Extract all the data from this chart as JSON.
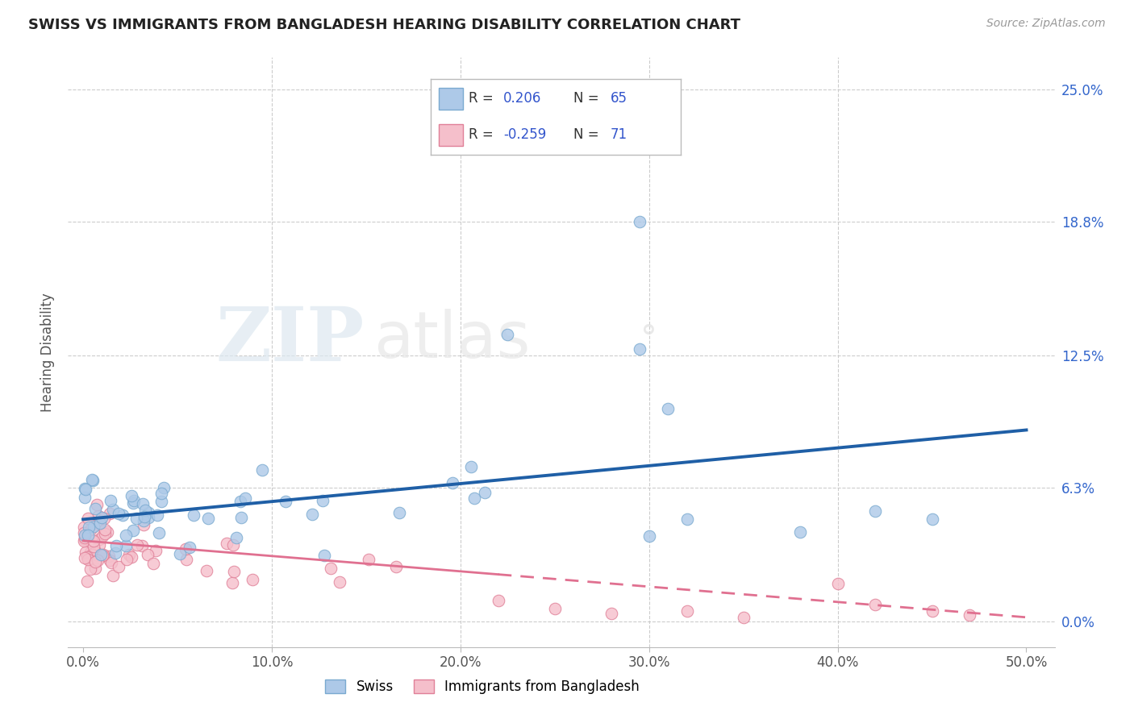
{
  "title": "SWISS VS IMMIGRANTS FROM BANGLADESH HEARING DISABILITY CORRELATION CHART",
  "source": "Source: ZipAtlas.com",
  "xlabel_ticks": [
    "0.0%",
    "10.0%",
    "20.0%",
    "30.0%",
    "40.0%",
    "50.0%"
  ],
  "xlabel_vals": [
    0.0,
    0.1,
    0.2,
    0.3,
    0.4,
    0.5
  ],
  "ylabel": "Hearing Disability",
  "ylabel_ticks": [
    "0.0%",
    "6.3%",
    "12.5%",
    "18.8%",
    "25.0%"
  ],
  "ylabel_vals": [
    0.0,
    0.063,
    0.125,
    0.188,
    0.25
  ],
  "swiss_color": "#adc9e8",
  "swiss_edge_color": "#7aaad0",
  "bangladesh_color": "#f5bfcb",
  "bangladesh_edge_color": "#e08098",
  "trend_swiss_color": "#1f5fa6",
  "trend_bangladesh_color": "#e07090",
  "R_swiss": 0.206,
  "N_swiss": 65,
  "R_bangladesh": -0.259,
  "N_bangladesh": 71,
  "watermark_zip": "ZIP",
  "watermark_atlas": "atlas",
  "legend_R_color": "#3355cc",
  "legend_text_color": "#333333",
  "xlim": [
    -0.008,
    0.515
  ],
  "ylim": [
    -0.012,
    0.265
  ],
  "swiss_trend_x0": 0.0,
  "swiss_trend_y0": 0.048,
  "swiss_trend_x1": 0.5,
  "swiss_trend_y1": 0.09,
  "bangladesh_trend_x0": 0.0,
  "bangladesh_trend_y0": 0.038,
  "bangladesh_trend_x1": 0.5,
  "bangladesh_trend_y1": 0.002
}
